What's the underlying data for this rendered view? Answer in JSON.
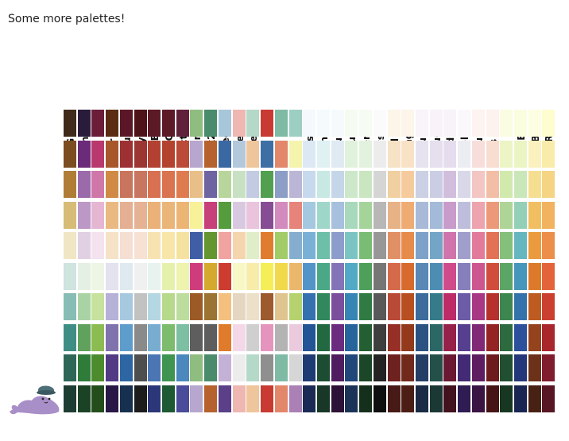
{
  "title": "Some more palettes!",
  "palettes": [
    {
      "name": "BrBG",
      "colors": [
        "#3f2a1b",
        "#7b4d21",
        "#b07d37",
        "#d6bc76",
        "#f1e6c4",
        "#cfe3df",
        "#87bdb4",
        "#3e8e86",
        "#2e6758",
        "#1e3d32"
      ]
    },
    {
      "name": "PRGn",
      "colors": [
        "#2a1b3a",
        "#6c2a7a",
        "#9a6aab",
        "#bc98c6",
        "#e1cfe3",
        "#e4f0e3",
        "#a9d3a5",
        "#5fa15d",
        "#2f7b39",
        "#1b4225"
      ]
    },
    {
      "name": "PiYG",
      "colors": [
        "#6b1d3a",
        "#b9386d",
        "#cf77a9",
        "#e5b6d2",
        "#f4e2ee",
        "#edf5e4",
        "#c6e29c",
        "#8cbc51",
        "#4c8c2d",
        "#234e1b"
      ]
    },
    {
      "name": "PuOr",
      "colors": [
        "#5b2c13",
        "#a8572a",
        "#d08a45",
        "#eab981",
        "#f6e2c6",
        "#e4e2ef",
        "#b6b1d6",
        "#8072ad",
        "#523a85",
        "#281846"
      ]
    },
    {
      "name": "RdBu",
      "colors": [
        "#5b1727",
        "#9c3033",
        "#c9745c",
        "#e4af93",
        "#f4dfd2",
        "#dfe9f0",
        "#a7c9df",
        "#5e9ccb",
        "#2d66a2",
        "#18304f"
      ]
    },
    {
      "name": "RdGy",
      "colors": [
        "#4d1319",
        "#9b3633",
        "#c8765f",
        "#e5b394",
        "#f6e1d3",
        "#f0f0f0",
        "#c2c2c2",
        "#8a8a8a",
        "#4e4e4e",
        "#1c1c1c"
      ]
    },
    {
      "name": "RdYlBu",
      "colors": [
        "#5c1a27",
        "#b24132",
        "#d87151",
        "#eab178",
        "#f7e3b2",
        "#e8f3f0",
        "#b4d7e3",
        "#78add0",
        "#4b76b3",
        "#2b3778"
      ]
    },
    {
      "name": "RdYlGn",
      "colors": [
        "#5c1a27",
        "#b3432f",
        "#d97350",
        "#eab578",
        "#f7e6a8",
        "#e6f0ad",
        "#b7d98b",
        "#7dbb6d",
        "#3e9450",
        "#1d5a33"
      ]
    },
    {
      "name": "Spectral",
      "colors": [
        "#61213a",
        "#bc4a39",
        "#df7c4f",
        "#edb574",
        "#f5e2a0",
        "#eef3ad",
        "#bddd9f",
        "#7dbfa3",
        "#4a88bd",
        "#4a4c9a"
      ]
    },
    {
      "name": "Accent",
      "colors": [
        "#8fbc7f",
        "#b7a6cd",
        "#e8bf88",
        "#f7f199",
        "#3f5ea5",
        "#cf3c7d",
        "#9c5a27",
        "#5e5e5e",
        "#8fbc7f",
        "#b7a6cd"
      ]
    },
    {
      "name": "Dark2",
      "colors": [
        "#4a8b6b",
        "#b6622e",
        "#6d64a1",
        "#c7407a",
        "#64962f",
        "#d4a92e",
        "#9b7332",
        "#5e5e5e",
        "#4a8b6b",
        "#b6622e"
      ]
    },
    {
      "name": "Paired",
      "colors": [
        "#a8c6d9",
        "#3a68a2",
        "#b8d59b",
        "#559c3d",
        "#f0a3a1",
        "#cc3d2f",
        "#f3c07f",
        "#e07b2b",
        "#c3b2d5",
        "#5b3f88"
      ]
    },
    {
      "name": "Pastel1",
      "colors": [
        "#eeb7b2",
        "#b3c8db",
        "#c8e1c3",
        "#d8c9e0",
        "#f5d5ad",
        "#f8f7c6",
        "#e4d6c1",
        "#f4d8e7",
        "#ececec",
        "#eeb7b2"
      ]
    },
    {
      "name": "Pastel2",
      "colors": [
        "#b4d9c8",
        "#efc59b",
        "#c2cbe1",
        "#eac4dd",
        "#e0edc9",
        "#f7ecaa",
        "#ede0c9",
        "#cfcfcf",
        "#b4d9c8",
        "#efc59b"
      ]
    },
    {
      "name": "Set1",
      "colors": [
        "#c93a32",
        "#3d6fa5",
        "#529f4f",
        "#864d95",
        "#e07c2e",
        "#f5ee56",
        "#9c5a2e",
        "#e595bd",
        "#8f8f8f",
        "#c93a32"
      ]
    },
    {
      "name": "Set2",
      "colors": [
        "#7fbba4",
        "#e3876b",
        "#8c9ec5",
        "#d38bbd",
        "#a1cc67",
        "#f1d94b",
        "#e0c490",
        "#b3b3b3",
        "#7fbba4",
        "#e3876b"
      ]
    },
    {
      "name": "Set3",
      "colors": [
        "#9ccfc2",
        "#f4f4ad",
        "#bbb6d6",
        "#e6837a",
        "#85aece",
        "#eab76c",
        "#b5d26f",
        "#ebcadd",
        "#d6d6d6",
        "#ab81b5"
      ]
    },
    {
      "name": "Blues",
      "colors": [
        "#f5f8fd",
        "#dce8f4",
        "#c7daed",
        "#a5c8e1",
        "#7bb0d6",
        "#5394c8",
        "#3571ae",
        "#235496",
        "#1f3b73",
        "#1b2a54"
      ]
    },
    {
      "name": "BuGn",
      "colors": [
        "#f5fbfd",
        "#dff1f2",
        "#c7e8e3",
        "#9fd6ca",
        "#6dbfa8",
        "#4aa886",
        "#31885d",
        "#226942",
        "#1c4d32",
        "#183727"
      ]
    },
    {
      "name": "BuPu",
      "colors": [
        "#f6fafd",
        "#e0eaf3",
        "#c5d6e8",
        "#a7c0dd",
        "#8d9dcb",
        "#8474b7",
        "#7b4f9c",
        "#6b2c80",
        "#4f1c5f",
        "#2c1236"
      ]
    },
    {
      "name": "GnBu",
      "colors": [
        "#f6fbf1",
        "#e1f2dc",
        "#cce8c9",
        "#a8d9bd",
        "#7cc4c4",
        "#52a9c6",
        "#3685b5",
        "#28649c",
        "#21477a",
        "#1b3356"
      ]
    },
    {
      "name": "Greens",
      "colors": [
        "#f6fbf4",
        "#e3f2de",
        "#c9e6c1",
        "#a5d49b",
        "#79bd75",
        "#4d9f59",
        "#307b43",
        "#245e33",
        "#1c4628",
        "#14301d"
      ]
    },
    {
      "name": "Greys",
      "colors": [
        "#fbfbfb",
        "#ececec",
        "#d5d5d5",
        "#b7b7b7",
        "#979797",
        "#767676",
        "#595959",
        "#3e3e3e",
        "#232323",
        "#0f0f0f"
      ]
    },
    {
      "name": "OrRd",
      "colors": [
        "#fdf5e8",
        "#f6e2c4",
        "#f0cfa0",
        "#e8b287",
        "#e18f64",
        "#d56a4b",
        "#b94a37",
        "#963027",
        "#6e2220",
        "#471917"
      ]
    },
    {
      "name": "Oranges",
      "colors": [
        "#fdf4ea",
        "#f9e1c6",
        "#f5cb9d",
        "#eeac72",
        "#e68b4b",
        "#d66b2d",
        "#b84f20",
        "#93391c",
        "#70291b",
        "#4c1d14"
      ]
    },
    {
      "name": "PuBu",
      "colors": [
        "#f9f4f9",
        "#e6e2ef",
        "#cbd0e5",
        "#a8bad8",
        "#7ea1c9",
        "#5987b6",
        "#3c6b9c",
        "#2c5282",
        "#243e65",
        "#1b2b46"
      ]
    },
    {
      "name": "PuBuGn",
      "colors": [
        "#f9f2f8",
        "#e6dfee",
        "#cbcde4",
        "#a3bad8",
        "#74a5c7",
        "#4e8db3",
        "#357b8a",
        "#2a6765",
        "#24504a",
        "#1b3834"
      ]
    },
    {
      "name": "PuRd",
      "colors": [
        "#f7f3f9",
        "#e5ddee",
        "#d1bedd",
        "#c99bca",
        "#d074ac",
        "#d04b8a",
        "#bd2c67",
        "#962149",
        "#6b1932",
        "#42121f"
      ]
    },
    {
      "name": "Purples",
      "colors": [
        "#faf8fb",
        "#ececf3",
        "#d9d8e9",
        "#bebedc",
        "#a09ecb",
        "#857fbb",
        "#6c5ba6",
        "#573f8f",
        "#432a74",
        "#2f1c52"
      ]
    },
    {
      "name": "RdPu",
      "colors": [
        "#fdf3f1",
        "#f8dedb",
        "#f3c5c3",
        "#eea4ae",
        "#e27a9c",
        "#cd5590",
        "#a83884",
        "#812876",
        "#5d1d60",
        "#3a1442"
      ]
    },
    {
      "name": "Reds",
      "colors": [
        "#fdf2ee",
        "#f8ddd1",
        "#f2bea6",
        "#eb9979",
        "#e27155",
        "#d24c3b",
        "#b6312c",
        "#942423",
        "#6d1b1d",
        "#471416"
      ]
    },
    {
      "name": "YlGn",
      "colors": [
        "#fbfde2",
        "#edf5c6",
        "#d2e9ad",
        "#aed597",
        "#84c07c",
        "#5ba566",
        "#3e8650",
        "#2d6a3f",
        "#214f31",
        "#173723"
      ]
    },
    {
      "name": "YlGnBu",
      "colors": [
        "#fbfddf",
        "#ebf5c4",
        "#c9e7b9",
        "#94d0b8",
        "#66b6c0",
        "#4695bb",
        "#3472ab",
        "#2c509b",
        "#243879",
        "#1a2651"
      ]
    },
    {
      "name": "YlOrBr",
      "colors": [
        "#fdfde2",
        "#faf1bf",
        "#f6de91",
        "#f1bf62",
        "#eb9b3e",
        "#dd7a29",
        "#bd5b21",
        "#95431d",
        "#6c3119",
        "#472113"
      ]
    },
    {
      "name": "YlOrRd",
      "colors": [
        "#fdfdcf",
        "#f9ecaa",
        "#f5d483",
        "#f1b35f",
        "#ec8f4a",
        "#e3643b",
        "#cb3f31",
        "#a8272d",
        "#7f1c2d",
        "#561623"
      ]
    }
  ]
}
